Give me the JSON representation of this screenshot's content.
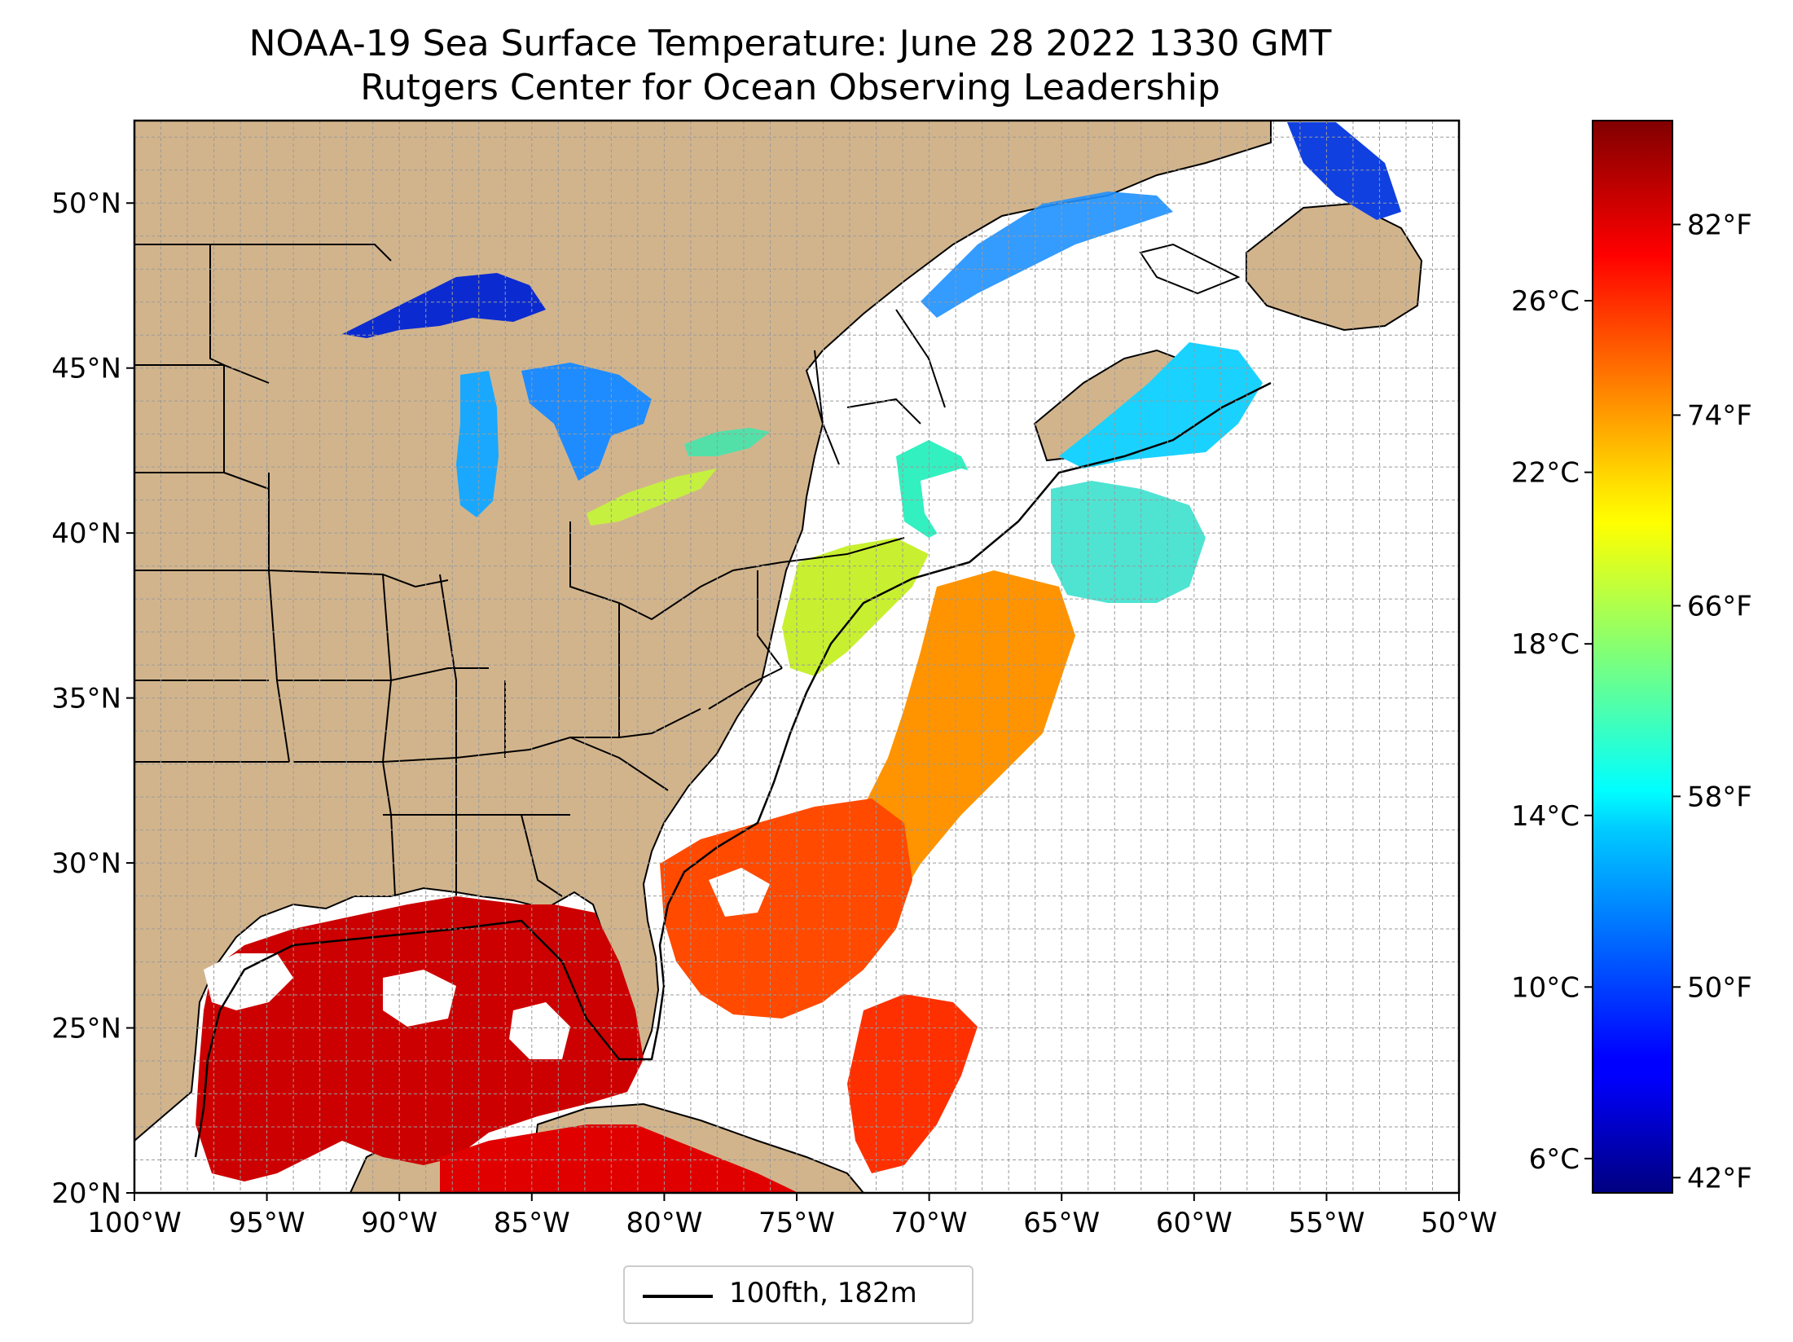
{
  "title": {
    "line1": "NOAA-19 Sea Surface Temperature: June 28 2022 1330 GMT",
    "line2": "Rutgers Center for Ocean Observing Leadership"
  },
  "map": {
    "type": "sea-surface-temperature-map",
    "extent": {
      "lon_min": -100,
      "lon_max": -50,
      "lat_min": 20,
      "lat_max": 52.5
    },
    "lat_ticks": [
      {
        "value": 50,
        "label": "50°N"
      },
      {
        "value": 45,
        "label": "45°N"
      },
      {
        "value": 40,
        "label": "40°N"
      },
      {
        "value": 35,
        "label": "35°N"
      },
      {
        "value": 30,
        "label": "30°N"
      },
      {
        "value": 25,
        "label": "25°N"
      },
      {
        "value": 20,
        "label": "20°N"
      }
    ],
    "lon_ticks": [
      {
        "value": -100,
        "label": "100°W"
      },
      {
        "value": -95,
        "label": "95°W"
      },
      {
        "value": -90,
        "label": "90°W"
      },
      {
        "value": -85,
        "label": "85°W"
      },
      {
        "value": -80,
        "label": "80°W"
      },
      {
        "value": -75,
        "label": "75°W"
      },
      {
        "value": -70,
        "label": "70°W"
      },
      {
        "value": -65,
        "label": "65°W"
      },
      {
        "value": -60,
        "label": "60°W"
      },
      {
        "value": -55,
        "label": "55°W"
      },
      {
        "value": -50,
        "label": "50°W"
      }
    ],
    "gridlines": true,
    "grid_spacing_deg": 1,
    "land_color": "#d2b48c",
    "lake_color": "#9bb8e4",
    "no_data_color": "#ffffff"
  },
  "colorbar": {
    "colormap": "jet",
    "range_c": [
      5.2,
      30.2
    ],
    "celsius_ticks": [
      {
        "value": 26,
        "label": "26°C"
      },
      {
        "value": 22,
        "label": "22°C"
      },
      {
        "value": 18,
        "label": "18°C"
      },
      {
        "value": 14,
        "label": "14°C"
      },
      {
        "value": 10,
        "label": "10°C"
      },
      {
        "value": 6,
        "label": "6°C"
      }
    ],
    "fahrenheit_ticks": [
      {
        "value": 82,
        "label": "82°F"
      },
      {
        "value": 74,
        "label": "74°F"
      },
      {
        "value": 66,
        "label": "66°F"
      },
      {
        "value": 58,
        "label": "58°F"
      },
      {
        "value": 50,
        "label": "50°F"
      },
      {
        "value": 42,
        "label": "42°F"
      }
    ]
  },
  "legend": {
    "label": "100fth, 182m",
    "line_color": "#000000",
    "placement": "bottom-center"
  }
}
